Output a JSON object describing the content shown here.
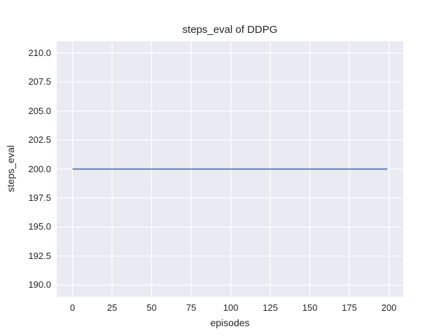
{
  "chart_data": {
    "type": "line",
    "title": "steps_eval of DDPG",
    "xlabel": "episodes",
    "ylabel": "steps_eval",
    "x_tick_labels": [
      "0",
      "25",
      "50",
      "75",
      "100",
      "125",
      "150",
      "175",
      "200"
    ],
    "y_tick_labels": [
      "190.0",
      "192.5",
      "195.0",
      "197.5",
      "200.0",
      "202.5",
      "205.0",
      "207.5",
      "210.0"
    ],
    "xlim": [
      -10,
      209
    ],
    "ylim": [
      189,
      211
    ],
    "grid": "on",
    "legend": "none",
    "series": [
      {
        "name": "steps_eval",
        "description": "constant value 200 for every evaluation episode",
        "x": [
          0,
          199
        ],
        "y": [
          200,
          200
        ],
        "constant_value": 200,
        "color": "#4C72B0"
      }
    ],
    "colors": {
      "figure_bg": "#FFFFFF",
      "plot_bg": "#EAEAF2",
      "grid": "#FFFFFF",
      "text": "#262626",
      "line": "#4C72B0"
    }
  }
}
